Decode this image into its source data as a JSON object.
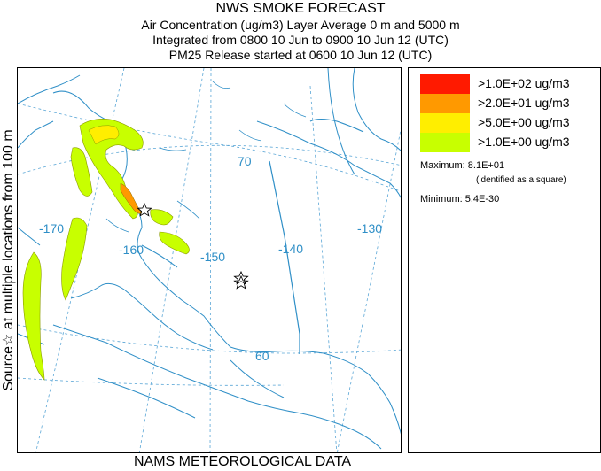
{
  "titles": {
    "line1": "NWS SMOKE FORECAST",
    "line2": "Air Concentration (ug/m3) Layer Average     0 m and  5000 m",
    "line3": "Integrated from 0800 10 Jun to 0900 10 Jun 12 (UTC)",
    "line4": "PM25 Release started at 0600 10 Jun 12 (UTC)"
  },
  "side_label": "Source☆ at multiple locations   from   100 m",
  "footer": "NAMS METEOROLOGICAL DATA",
  "map": {
    "lon_labels": [
      "-170",
      "-160",
      "-150",
      "-140",
      "-130"
    ],
    "lat_labels": [
      "70",
      "60"
    ],
    "colors": {
      "water_lines": "#2f8fc7",
      "grid": "#5aa6d6"
    }
  },
  "legend": {
    "items": [
      {
        "label": ">1.0E+02 ug/m3",
        "color": "#ff1a00"
      },
      {
        "label": ">2.0E+01 ug/m3",
        "color": "#ff9900"
      },
      {
        "label": ">5.0E+00 ug/m3",
        "color": "#ffee00"
      },
      {
        "label": ">1.0E+00 ug/m3",
        "color": "#c8ff00"
      }
    ],
    "maximum_label": "Maximum: 8.1E+01",
    "maximum_note": "(identified as a square)",
    "minimum_label": "Minimum: 5.4E-30"
  }
}
